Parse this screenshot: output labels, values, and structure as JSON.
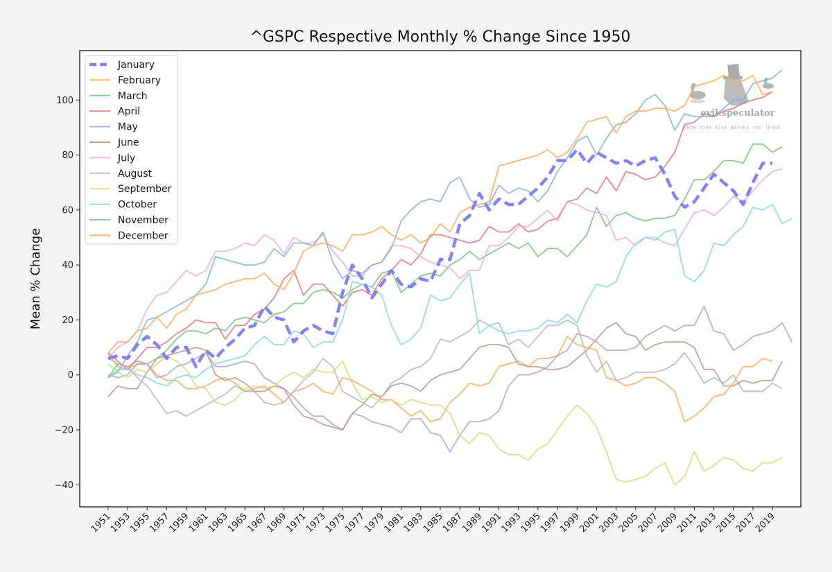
{
  "chart_data": {
    "type": "line",
    "title": "^GSPC Respective Monthly % Change Since 1950",
    "xlabel": "",
    "ylabel": "Mean % Change",
    "xlim": [
      1948.1,
      2021.9
    ],
    "ylim": [
      -48,
      118
    ],
    "grid": false,
    "legend_position": "top-left",
    "x_ticks": [
      "1951",
      "1953",
      "1955",
      "1957",
      "1959",
      "1961",
      "1963",
      "1965",
      "1967",
      "1969",
      "1971",
      "1973",
      "1975",
      "1977",
      "1979",
      "1981",
      "1983",
      "1985",
      "1987",
      "1989",
      "1991",
      "1993",
      "1995",
      "1997",
      "1999",
      "2001",
      "2003",
      "2005",
      "2007",
      "2009",
      "2011",
      "2013",
      "2015",
      "2017",
      "2019"
    ],
    "y_ticks": [
      "−40",
      "−20",
      "0",
      "20",
      "40",
      "60",
      "80",
      "100"
    ],
    "y_tick_values": [
      -40,
      -20,
      0,
      20,
      40,
      60,
      80,
      100
    ],
    "x_start": 1951,
    "series": [
      {
        "name": "January",
        "color": "#7b7bf7",
        "style": "dashed",
        "values": [
          6,
          7,
          6,
          11,
          14,
          11,
          6,
          10,
          10,
          3,
          9,
          6,
          10,
          13,
          17,
          18,
          25,
          21,
          20,
          12,
          16,
          18,
          16,
          15,
          30,
          40,
          35,
          28,
          33,
          38,
          33,
          32,
          35,
          34,
          42,
          42,
          55,
          58,
          66,
          60,
          64,
          62,
          62,
          65,
          68,
          72,
          78,
          78,
          82,
          77,
          81,
          79,
          77,
          78,
          76,
          78,
          79,
          73,
          65,
          61,
          63,
          68,
          73,
          70,
          67,
          62,
          70,
          77,
          77
        ]
      },
      {
        "name": "February",
        "color": "#ffa85c",
        "style": "solid",
        "values": [
          8,
          3,
          2,
          4,
          4,
          0,
          -2,
          -2,
          -5,
          -5,
          -4,
          -2,
          -1,
          -3,
          -6,
          -5,
          -4,
          -7,
          -10,
          -6,
          -5,
          -3,
          -6,
          -7,
          -1,
          -2,
          -4,
          -6,
          -9,
          -9,
          -12,
          -15,
          -13,
          -17,
          -16,
          -10,
          -7,
          -3,
          -4,
          -3,
          3,
          4,
          5,
          3,
          6,
          6,
          7,
          14,
          11,
          10,
          9,
          -1,
          -2,
          -4,
          -3,
          -1,
          -1,
          -3,
          -6,
          -17,
          -15,
          -12,
          -8,
          -7,
          -3,
          3,
          3,
          6,
          5
        ]
      },
      {
        "name": "March",
        "color": "#77c07a",
        "style": "solid",
        "values": [
          -1,
          4,
          3,
          5,
          4,
          6,
          9,
          13,
          16,
          16,
          15,
          17,
          16,
          20,
          21,
          20,
          19,
          22,
          23,
          26,
          26,
          30,
          31,
          30,
          28,
          31,
          33,
          32,
          37,
          38,
          30,
          33,
          36,
          37,
          36,
          40,
          42,
          45,
          42,
          44,
          46,
          48,
          46,
          48,
          43,
          46,
          46,
          43,
          47,
          51,
          61,
          54,
          58,
          59,
          57,
          56,
          57,
          57,
          58,
          64,
          71,
          71,
          74,
          78,
          78,
          77,
          84,
          84,
          81,
          83
        ]
      },
      {
        "name": "April",
        "color": "#e57373",
        "style": "solid",
        "values": [
          8,
          5,
          2,
          6,
          10,
          10,
          12,
          15,
          17,
          20,
          19,
          19,
          13,
          18,
          18,
          22,
          24,
          28,
          35,
          38,
          29,
          33,
          33,
          29,
          25,
          30,
          31,
          29,
          35,
          38,
          42,
          40,
          44,
          51,
          51,
          50,
          49,
          48,
          49,
          54,
          52,
          52,
          55,
          52,
          53,
          56,
          57,
          63,
          64,
          68,
          66,
          72,
          67,
          74,
          73,
          71,
          72,
          76,
          81,
          91,
          92,
          95,
          94,
          96,
          97,
          99,
          100,
          101,
          103
        ]
      },
      {
        "name": "May",
        "color": "#b39ddb",
        "style": "solid",
        "values": [
          0,
          -1,
          0,
          4,
          4,
          -1,
          0,
          3,
          4,
          6,
          8,
          3,
          3,
          4,
          5,
          4,
          -1,
          -3,
          -5,
          -8,
          -12,
          -15,
          -15,
          -18,
          -20,
          -14,
          -15,
          -17,
          -18,
          -19,
          -21,
          -16,
          -16,
          -21,
          -22,
          -28,
          -22,
          -17,
          -17,
          -16,
          -13,
          -4,
          0,
          0,
          1,
          3,
          7,
          9,
          15,
          14,
          12,
          9,
          9,
          9,
          10,
          14,
          16,
          18,
          16,
          18,
          18,
          25,
          16,
          15,
          9,
          11,
          14,
          15,
          16,
          19,
          12
        ]
      },
      {
        "name": "June",
        "color": "#b89488",
        "style": "solid",
        "values": [
          -8,
          -4,
          -5,
          -5,
          1,
          6,
          7,
          8,
          9,
          10,
          9,
          0,
          -2,
          -1,
          -3,
          -6,
          -6,
          -4,
          -5,
          -11,
          -15,
          -16,
          -18,
          -19,
          -20,
          -14,
          -11,
          -7,
          -8,
          -4,
          -3,
          -4,
          -6,
          -2,
          0,
          1,
          2,
          6,
          10,
          11,
          11,
          10,
          4,
          3,
          3,
          2,
          2,
          3,
          6,
          9,
          13,
          17,
          19,
          15,
          14,
          9,
          11,
          12,
          12,
          12,
          10,
          2,
          2,
          -4,
          -4,
          -2,
          -3,
          -2,
          -2,
          5
        ]
      },
      {
        "name": "July",
        "color": "#f0a8dc",
        "style": "solid",
        "values": [
          6,
          10,
          12,
          16,
          24,
          29,
          30,
          34,
          38,
          36,
          38,
          45,
          45,
          46,
          48,
          47,
          51,
          49,
          44,
          50,
          48,
          48,
          51,
          45,
          41,
          36,
          36,
          40,
          41,
          47,
          47,
          46,
          43,
          41,
          40,
          39,
          35,
          38,
          38,
          47,
          47,
          50,
          54,
          54,
          57,
          60,
          56,
          63,
          62,
          60,
          59,
          58,
          49,
          50,
          47,
          50,
          50,
          48,
          47,
          53,
          59,
          60,
          58,
          61,
          65,
          63,
          67,
          71,
          74,
          75
        ]
      },
      {
        "name": "August",
        "color": "#b5b5b5",
        "style": "solid",
        "values": [
          6,
          4,
          3,
          -1,
          -4,
          -9,
          -14,
          -13,
          -15,
          -13,
          -11,
          -9,
          -7,
          -4,
          -6,
          -6,
          -10,
          -11,
          -10,
          -6,
          -2,
          1,
          6,
          3,
          -6,
          -8,
          -10,
          -12,
          -8,
          -3,
          -1,
          2,
          3,
          6,
          13,
          12,
          14,
          16,
          20,
          18,
          19,
          11,
          13,
          10,
          14,
          18,
          18,
          20,
          18,
          7,
          1,
          5,
          -2,
          -1,
          1,
          1,
          1,
          2,
          4,
          8,
          3,
          -3,
          -1,
          -3,
          0,
          -6,
          -6,
          -6,
          -3,
          -5
        ]
      },
      {
        "name": "September",
        "color": "#d7d77a",
        "style": "solid",
        "values": [
          4,
          1,
          -1,
          2,
          1,
          4,
          7,
          5,
          2,
          -4,
          -5,
          -10,
          -11,
          -9,
          -5,
          -4,
          -5,
          -4,
          -1,
          1,
          -1,
          2,
          1,
          1,
          5,
          -3,
          -9,
          -8,
          -10,
          -9,
          -11,
          -9,
          -10,
          -11,
          -11,
          -14,
          -22,
          -25,
          -21,
          -22,
          -27,
          -29,
          -29,
          -31,
          -27,
          -25,
          -20,
          -15,
          -11,
          -14,
          -19,
          -28,
          -38,
          -39,
          -38,
          -37,
          -34,
          -32,
          -40,
          -37,
          -28,
          -35,
          -33,
          -30,
          -31,
          -34,
          -35,
          -32,
          -32,
          -30
        ]
      },
      {
        "name": "October",
        "color": "#80d8e0",
        "style": "solid",
        "values": [
          -1,
          2,
          2,
          0,
          -1,
          -3,
          -4,
          -1,
          0,
          -1,
          2,
          4,
          5,
          6,
          7,
          11,
          14,
          11,
          11,
          16,
          15,
          10,
          12,
          12,
          20,
          34,
          33,
          32,
          29,
          18,
          11,
          13,
          17,
          29,
          27,
          28,
          33,
          37,
          15,
          18,
          16,
          15,
          16,
          16,
          17,
          20,
          19,
          22,
          19,
          27,
          33,
          32,
          34,
          43,
          48,
          50,
          49,
          52,
          53,
          36,
          34,
          38,
          48,
          47,
          51,
          54,
          61,
          60,
          62,
          55,
          57
        ]
      },
      {
        "name": "November",
        "color": "#80b2d4",
        "style": "solid",
        "values": [
          -1,
          1,
          7,
          12,
          20,
          21,
          23,
          25,
          27,
          29,
          33,
          43,
          42,
          41,
          40,
          40,
          41,
          46,
          43,
          48,
          48,
          47,
          52,
          41,
          35,
          38,
          37,
          40,
          41,
          46,
          56,
          60,
          63,
          64,
          63,
          70,
          72,
          64,
          61,
          62,
          69,
          66,
          68,
          67,
          63,
          67,
          74,
          79,
          85,
          87,
          80,
          86,
          91,
          92,
          95,
          100,
          102,
          98,
          89,
          95,
          94,
          94,
          94,
          97,
          100,
          100,
          106,
          107,
          108,
          111
        ]
      },
      {
        "name": "December",
        "color": "#ffa85c",
        "style": "solid",
        "values": [
          8,
          12,
          12,
          16,
          17,
          21,
          17,
          22,
          24,
          29,
          30,
          31,
          33,
          34,
          35,
          35,
          37,
          33,
          31,
          37,
          45,
          47,
          48,
          47,
          45,
          51,
          51,
          52,
          54,
          51,
          49,
          51,
          48,
          50,
          55,
          52,
          59,
          61,
          62,
          63,
          76,
          77,
          78,
          79,
          80,
          82,
          79,
          81,
          86,
          92,
          93,
          94,
          88,
          94,
          96,
          96,
          97,
          97,
          96,
          98,
          105,
          106,
          107,
          109,
          107,
          107,
          109,
          102,
          103
        ]
      }
    ]
  },
  "watermark": {
    "brand": "evil.speculator",
    "tagline": "KNOW YOUR RISK BEFORE YOU TRADE"
  }
}
